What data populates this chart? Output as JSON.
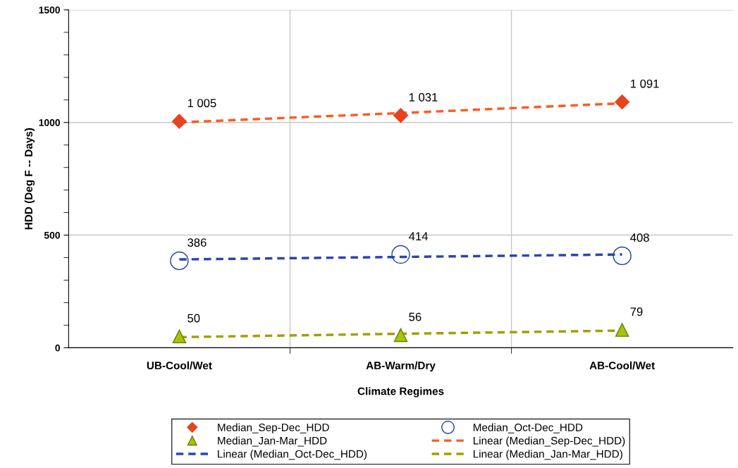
{
  "chart_data": {
    "type": "scatter",
    "xlabel": "Climate Regimes",
    "ylabel": "HDD (Deg F -- Days)",
    "categories": [
      "UB-Cool/Wet",
      "AB-Warm/Dry",
      "AB-Cool/Wet"
    ],
    "ylim": [
      0,
      1500
    ],
    "yticks": [
      0,
      {
        "value": 100,
        "label": null
      },
      {
        "value": 200,
        "label": null
      },
      {
        "value": 300,
        "label": null
      },
      {
        "value": 400,
        "label": null
      },
      500,
      {
        "value": 600,
        "label": null
      },
      {
        "value": 700,
        "label": null
      },
      {
        "value": 800,
        "label": null
      },
      {
        "value": 900,
        "label": null
      },
      1000,
      {
        "value": 1100,
        "label": null
      },
      {
        "value": 1200,
        "label": null
      },
      {
        "value": 1300,
        "label": null
      },
      {
        "value": 1400,
        "label": null
      },
      1500
    ],
    "grid": true,
    "legend": "bottom",
    "series": [
      {
        "name": "Median_Sep-Dec_HDD",
        "marker": "diamond",
        "color": "#e8431f",
        "values": [
          1005,
          1031,
          1091
        ],
        "value_labels": [
          "1 005",
          "1 031",
          "1 091"
        ]
      },
      {
        "name": "Median_Oct-Dec_HDD",
        "marker": "circle",
        "color": "#1f3fa8",
        "values": [
          386,
          414,
          408
        ],
        "value_labels": [
          "386",
          "414",
          "408"
        ]
      },
      {
        "name": "Median_Jan-Mar_HDD",
        "marker": "triangle",
        "color": "#a8c40a",
        "values": [
          50,
          56,
          79
        ],
        "value_labels": [
          "50",
          "56",
          "79"
        ]
      },
      {
        "name": "Linear (Median_Sep-Dec_HDD)",
        "type": "line",
        "line_style": "dashed",
        "color": "#ff5a1e",
        "x": [
          "UB-Cool/Wet",
          "AB-Warm/Dry",
          "AB-Cool/Wet"
        ],
        "values": [
          1000,
          1042,
          1085
        ]
      },
      {
        "name": "Linear (Median_Oct-Dec_HDD)",
        "type": "line",
        "line_style": "dashed",
        "color": "#2a45b0",
        "x": [
          "UB-Cool/Wet",
          "AB-Warm/Dry",
          "AB-Cool/Wet"
        ],
        "values": [
          392,
          403,
          414
        ]
      },
      {
        "name": "Linear (Median_Jan-Mar_HDD)",
        "type": "line",
        "line_style": "dashed",
        "color": "#a0a000",
        "x": [
          "UB-Cool/Wet",
          "AB-Warm/Dry",
          "AB-Cool/Wet"
        ],
        "values": [
          47,
          62,
          76
        ]
      }
    ]
  }
}
